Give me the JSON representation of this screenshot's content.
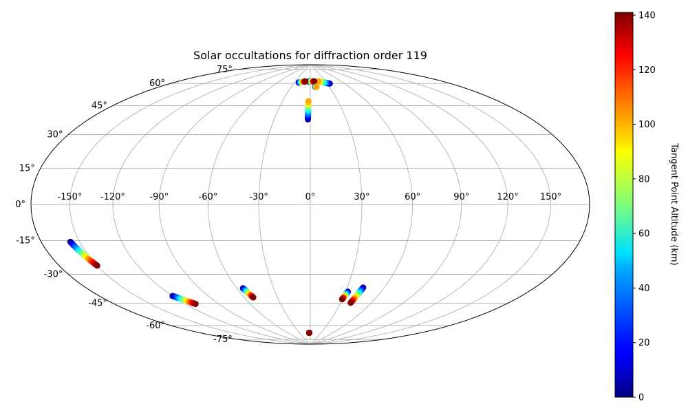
{
  "chart_data": {
    "type": "scatter",
    "projection": "hammer",
    "title": "Solar occultations for diffraction order 119",
    "lon_ticks": [
      "-150°",
      "-120°",
      "-90°",
      "-60°",
      "-30°",
      "0°",
      "30°",
      "60°",
      "90°",
      "120°",
      "150°"
    ],
    "lat_ticks": [
      "75°",
      "60°",
      "45°",
      "30°",
      "15°",
      "0°",
      "-15°",
      "-30°",
      "-45°",
      "-60°",
      "-75°"
    ],
    "grid": true,
    "colorbar": {
      "label": "Tangent Point Altitude (km)",
      "colormap": "jet",
      "range": [
        0,
        141
      ],
      "ticks": [
        "0",
        "20",
        "40",
        "60",
        "80",
        "100",
        "120",
        "140"
      ]
    },
    "tracks": [
      {
        "lon": [
          -157,
          -150
        ],
        "lat": [
          -17,
          -29
        ],
        "alt": [
          0,
          141
        ]
      },
      {
        "lon": [
          -120,
          -111
        ],
        "lat": [
          -49,
          -55
        ],
        "alt": [
          0,
          141
        ]
      },
      {
        "lon": [
          -55,
          -52
        ],
        "lat": [
          -49,
          -55
        ],
        "alt": [
          0,
          141
        ]
      },
      {
        "lon": [
          -3,
          -3
        ],
        "lat": [
          -81,
          -81
        ],
        "alt": [
          141,
          141
        ]
      },
      {
        "lon": [
          -2,
          -2
        ],
        "lat": [
          51,
          63
        ],
        "alt": [
          0,
          100
        ]
      },
      {
        "lon": [
          32,
          30
        ],
        "lat": [
          -52,
          -57
        ],
        "alt": [
          0,
          141
        ]
      },
      {
        "lon": [
          43,
          40
        ],
        "lat": [
          -49,
          -59
        ],
        "alt": [
          0,
          141
        ]
      },
      {
        "lon": [
          35,
          16
        ],
        "lat": [
          75,
          77
        ],
        "alt": [
          0,
          100
        ]
      },
      {
        "lon": [
          -3,
          8
        ],
        "lat": [
          77,
          77
        ],
        "alt": [
          0,
          141
        ]
      },
      {
        "lon": [
          -22,
          -10
        ],
        "lat": [
          76,
          77
        ],
        "alt": [
          0,
          141
        ]
      },
      {
        "lon": [
          8,
          10
        ],
        "lat": [
          73,
          73
        ],
        "alt": [
          0,
          100
        ]
      }
    ]
  }
}
